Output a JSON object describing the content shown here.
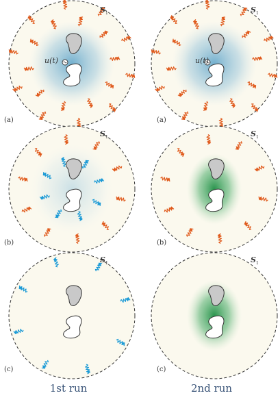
{
  "panels": [
    {
      "row": 0,
      "col": 0,
      "label": "(a)",
      "sphere_label": "S",
      "sphere_sub": "1",
      "source_label": "u(t)",
      "glow": "blue",
      "waves_orange": 20,
      "waves_blue": 0
    },
    {
      "row": 0,
      "col": 1,
      "label": "(a)",
      "sphere_label": "S",
      "sphere_sub": "1",
      "source_label": "u(t)",
      "glow": "blue",
      "waves_orange": 20,
      "waves_blue": 0
    },
    {
      "row": 1,
      "col": 0,
      "label": "(b)",
      "sphere_label": "S",
      "sphere_sub": "1",
      "source_label": "",
      "glow": "lightblue",
      "waves_orange": 10,
      "waves_blue": 8
    },
    {
      "row": 1,
      "col": 1,
      "label": "(b)",
      "sphere_label": "S",
      "sphere_sub": "1",
      "source_label": "",
      "glow": "green",
      "waves_orange": 10,
      "waves_blue": 0
    },
    {
      "row": 2,
      "col": 0,
      "label": "(c)",
      "sphere_label": "S",
      "sphere_sub": "1",
      "source_label": "",
      "glow": "none",
      "waves_orange": 0,
      "waves_blue": 8
    },
    {
      "row": 2,
      "col": 1,
      "label": "(c)",
      "sphere_label": "S",
      "sphere_sub": "1",
      "source_label": "",
      "glow": "green",
      "waves_orange": 0,
      "waves_blue": 0
    }
  ],
  "columns": [
    "1st run",
    "2nd run"
  ],
  "colors": {
    "circle_fill": "#fbf9ee",
    "circle_stroke": "#333333",
    "orange_wave": "#e05a1c",
    "blue_wave": "#1b9ad6",
    "blue_glow": "#7fb6d3",
    "green_glow": "#2e9e52",
    "object_fill": "#c9c9c9",
    "object_stroke": "#333333"
  }
}
